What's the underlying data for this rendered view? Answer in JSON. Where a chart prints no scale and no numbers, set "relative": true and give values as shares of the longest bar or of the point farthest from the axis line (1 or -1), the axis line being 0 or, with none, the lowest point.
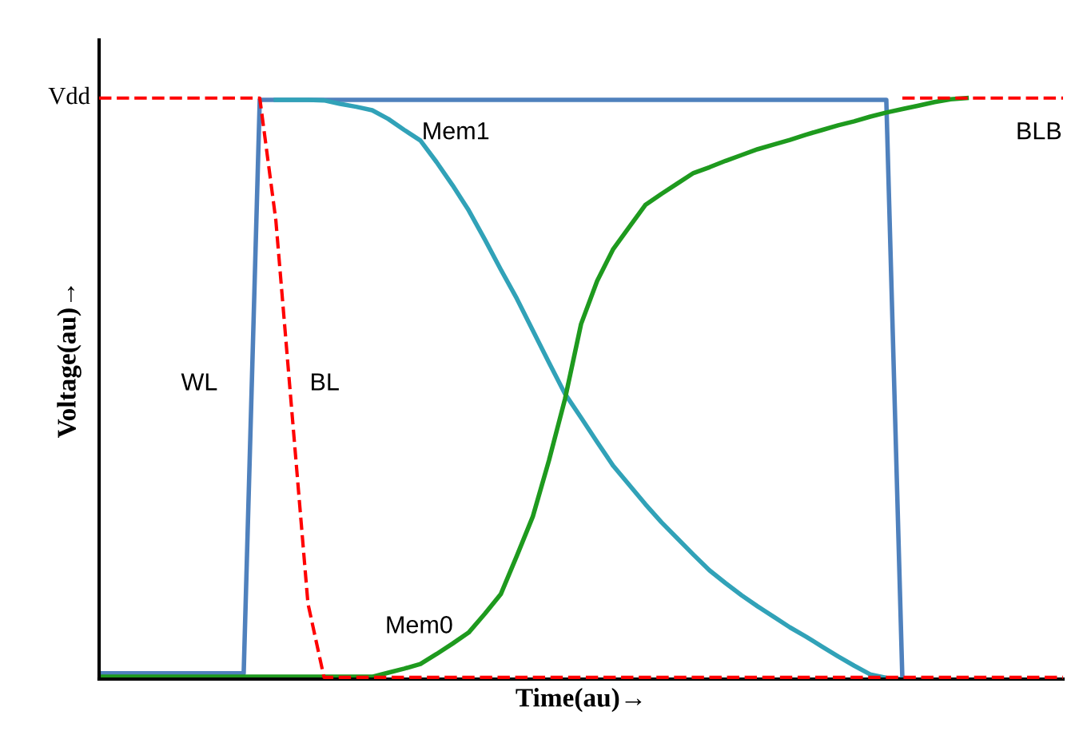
{
  "chart_data": {
    "type": "line",
    "relative": true,
    "xlabel": "Time(au)→",
    "ylabel": "Voltage(au)→",
    "annotations": [
      "Vdd"
    ],
    "tick_labels": false,
    "legend": false,
    "marker": "none",
    "categories": [
      null,
      null,
      null,
      null,
      null,
      null,
      null,
      null,
      null,
      null,
      null,
      null,
      null,
      null,
      null,
      null,
      null,
      null,
      null,
      null,
      null,
      null,
      null,
      null,
      null,
      null,
      null,
      null,
      null,
      null,
      null,
      null,
      null,
      null,
      null,
      null,
      null,
      null,
      null,
      null,
      null,
      null,
      null,
      null,
      null,
      null,
      null,
      null,
      null,
      null,
      null,
      null,
      null,
      null,
      null,
      null,
      null,
      null,
      null,
      null,
      null
    ],
    "series": [
      {
        "name": "WL",
        "color": "#4f81bd",
        "line_style": "solid",
        "values": [
          0.01,
          0.01,
          0.01,
          0.01,
          0.01,
          0.01,
          0.01,
          0.01,
          0.01,
          0.01,
          0.997,
          0.997,
          0.997,
          0.997,
          0.997,
          0.997,
          0.997,
          0.997,
          0.997,
          0.997,
          0.997,
          0.997,
          0.997,
          0.997,
          0.997,
          0.997,
          0.997,
          0.997,
          0.997,
          0.997,
          0.997,
          0.997,
          0.997,
          0.997,
          0.997,
          0.997,
          0.997,
          0.997,
          0.997,
          0.997,
          0.997,
          0.997,
          0.997,
          0.997,
          0.997,
          0.997,
          0.997,
          0.997,
          0.997,
          0.997,
          0,
          null,
          null,
          null,
          null,
          null,
          null,
          null,
          null,
          null,
          null
        ]
      },
      {
        "name": "BL",
        "color": "#ff0000",
        "line_style": "dashed",
        "values": [
          1,
          1,
          1,
          1,
          1,
          1,
          1,
          1,
          1,
          1,
          1,
          0.79,
          0.46,
          0.13,
          0.003,
          0.003,
          0.003,
          0.003,
          0.003,
          0.003,
          0.003,
          0.003,
          0.003,
          0.003,
          0.003,
          0.003,
          0.003,
          0.003,
          0.003,
          0.003,
          0.003,
          0.003,
          0.003,
          0.003,
          0.003,
          0.003,
          0.003,
          0.003,
          0.003,
          0.003,
          0.003,
          0.003,
          0.003,
          0.003,
          0.003,
          0.003,
          0.003,
          0.003,
          0.003,
          0.003,
          0.003,
          0.003,
          0.003,
          0.003,
          0.003,
          0.003,
          0.003,
          0.003,
          0.003,
          0.003,
          0.003
        ]
      },
      {
        "name": "Mem1",
        "color": "#31a2b8",
        "line_style": "solid",
        "values": [
          null,
          null,
          null,
          null,
          null,
          null,
          null,
          null,
          null,
          null,
          null,
          0.997,
          0.997,
          0.997,
          0.996,
          0.99,
          0.985,
          0.979,
          0.964,
          0.945,
          0.927,
          0.89,
          0.85,
          0.807,
          0.757,
          0.705,
          0.655,
          0.6,
          0.545,
          0.491,
          0.45,
          0.408,
          0.367,
          0.334,
          0.301,
          0.27,
          0.242,
          0.214,
          0.187,
          0.165,
          0.144,
          0.125,
          0.107,
          0.089,
          0.073,
          0.056,
          0.039,
          0.023,
          0.008,
          0.002,
          0,
          null,
          null,
          null,
          null,
          null,
          null,
          null,
          null,
          null,
          null
        ]
      },
      {
        "name": "Mem0",
        "color": "#1e9a1e",
        "line_style": "solid",
        "values": [
          0.004,
          0.004,
          0.004,
          0.004,
          0.004,
          0.004,
          0.004,
          0.004,
          0.004,
          0.004,
          0.004,
          0.004,
          0.004,
          0.004,
          0.004,
          0.004,
          0.004,
          0.004,
          0.011,
          0.018,
          0.026,
          0.043,
          0.061,
          0.08,
          0.112,
          0.146,
          0.212,
          0.28,
          0.376,
          0.482,
          0.611,
          0.685,
          0.74,
          0.778,
          0.816,
          0.835,
          0.853,
          0.871,
          0.881,
          0.892,
          0.902,
          0.912,
          0.92,
          0.928,
          0.937,
          0.945,
          0.953,
          0.96,
          0.968,
          0.975,
          0.981,
          0.987,
          0.993,
          0.998,
          1.0,
          null,
          null,
          null,
          null,
          null,
          null
        ]
      },
      {
        "name": "BLB",
        "color": "#ff0000",
        "line_style": "dashed",
        "values": [
          null,
          null,
          null,
          null,
          null,
          null,
          null,
          null,
          null,
          null,
          null,
          null,
          null,
          null,
          null,
          null,
          null,
          null,
          null,
          null,
          null,
          null,
          null,
          null,
          null,
          null,
          null,
          null,
          null,
          null,
          null,
          null,
          null,
          null,
          null,
          null,
          null,
          null,
          null,
          null,
          null,
          null,
          null,
          null,
          null,
          null,
          null,
          null,
          null,
          null,
          1,
          1,
          1,
          1,
          1,
          1,
          1,
          1,
          1,
          1,
          1
        ]
      }
    ]
  }
}
